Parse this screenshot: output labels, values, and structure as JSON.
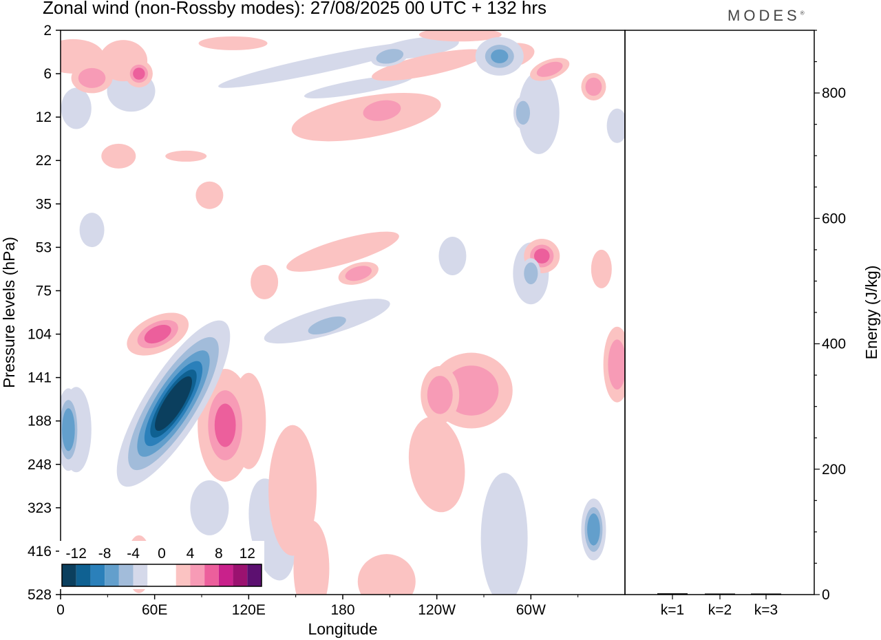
{
  "header": {
    "title": "Zonal wind (non-Rossby modes):  27/08/2025  00 UTC  + 132 hrs",
    "brand": "MODES",
    "brand_mark": "®"
  },
  "chart_data": [
    {
      "type": "heatmap",
      "title": "Zonal wind (non-Rossby modes):  27/08/2025  00 UTC  + 132 hrs",
      "xlabel": "Longitude",
      "ylabel": "Pressure levels (hPa)",
      "x_ticks": [
        "0",
        "60E",
        "120E",
        "180",
        "120W",
        "60W"
      ],
      "x_range_degrees_east": [
        0,
        360
      ],
      "y_ticks": [
        "2",
        "6",
        "12",
        "22",
        "35",
        "53",
        "75",
        "104",
        "141",
        "188",
        "248",
        "323",
        "416",
        "528"
      ],
      "y_range_hPa": [
        2,
        528
      ],
      "colorbar": {
        "labels": [
          "-12",
          "-8",
          "-4",
          "0",
          "4",
          "8",
          "12"
        ],
        "levels": [
          -14,
          -12,
          -10,
          -8,
          -6,
          -4,
          -2,
          2,
          4,
          6,
          8,
          10,
          12,
          14
        ],
        "colors": [
          "#0b3f5e",
          "#0f6192",
          "#2b80ba",
          "#639fcc",
          "#a2bcda",
          "#d5d9ea",
          "#ffffff",
          "#ffffff",
          "#fbc3c2",
          "#f79bb6",
          "#ec5f9c",
          "#c9218b",
          "#9b1270",
          "#5c1070"
        ]
      },
      "features": [
        {
          "name": "negative core near 65-80E",
          "lon": 72,
          "level_hPa": 150,
          "value": -12
        },
        {
          "name": "negative lobe near 5E",
          "lon": 5,
          "level_hPa": 190,
          "value": -6
        },
        {
          "name": "positive lobe near 105E",
          "lon": 105,
          "level_hPa": 190,
          "value": 8
        },
        {
          "name": "positive band near 60E",
          "lon": 62,
          "level_hPa": 100,
          "value": 6
        },
        {
          "name": "positive band 180-160W upper",
          "lon": 200,
          "level_hPa": 12,
          "value": 6
        },
        {
          "name": "positive area near 100W",
          "lon": 258,
          "level_hPa": 150,
          "value": 6
        }
      ]
    },
    {
      "type": "bar",
      "ylabel": "Energy (J/kg)",
      "categories": [
        "k=1",
        "k=2",
        "k=3"
      ],
      "values": [
        2,
        1,
        1
      ],
      "ylim": [
        0,
        900
      ],
      "y_ticks": [
        "0",
        "200",
        "400",
        "600",
        "800"
      ]
    }
  ]
}
